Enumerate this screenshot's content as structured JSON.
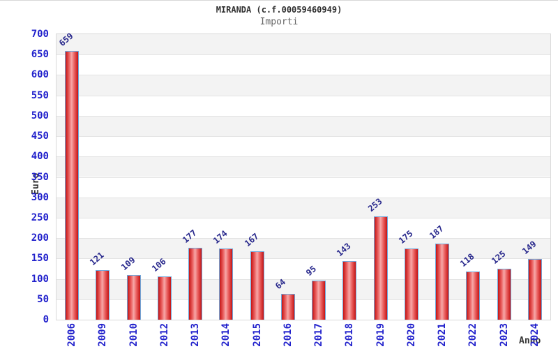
{
  "chart_data": {
    "type": "bar",
    "title": "MIRANDA (c.f.00059460949)",
    "subtitle": "Importi",
    "xlabel": "Anno",
    "ylabel": "Euro",
    "categories": [
      "2006",
      "2009",
      "2010",
      "2012",
      "2013",
      "2014",
      "2015",
      "2016",
      "2017",
      "2018",
      "2019",
      "2020",
      "2021",
      "2022",
      "2023",
      "2024"
    ],
    "values": [
      659,
      121,
      109,
      106,
      177,
      174,
      167,
      64,
      95,
      143,
      253,
      175,
      187,
      118,
      125,
      149
    ],
    "ylim": [
      0,
      700
    ],
    "yticks": [
      0,
      50,
      100,
      150,
      200,
      250,
      300,
      350,
      400,
      450,
      500,
      550,
      600,
      650,
      700
    ],
    "grid": "horizontal-bands-alternating",
    "legend": "none",
    "colors": {
      "bar_edge": "#c41414",
      "bar_mid": "#ea6060",
      "bar_center": "#f7a8a8",
      "bar_border": "#6fa8dc",
      "tick_label": "#2222cc",
      "value_label": "#28288c",
      "band_gray": "#f3f3f3",
      "band_white": "#ffffff",
      "grid_line": "#e3e3e3",
      "title_color": "#2f2f2f",
      "subtitle_color": "#666666"
    }
  }
}
